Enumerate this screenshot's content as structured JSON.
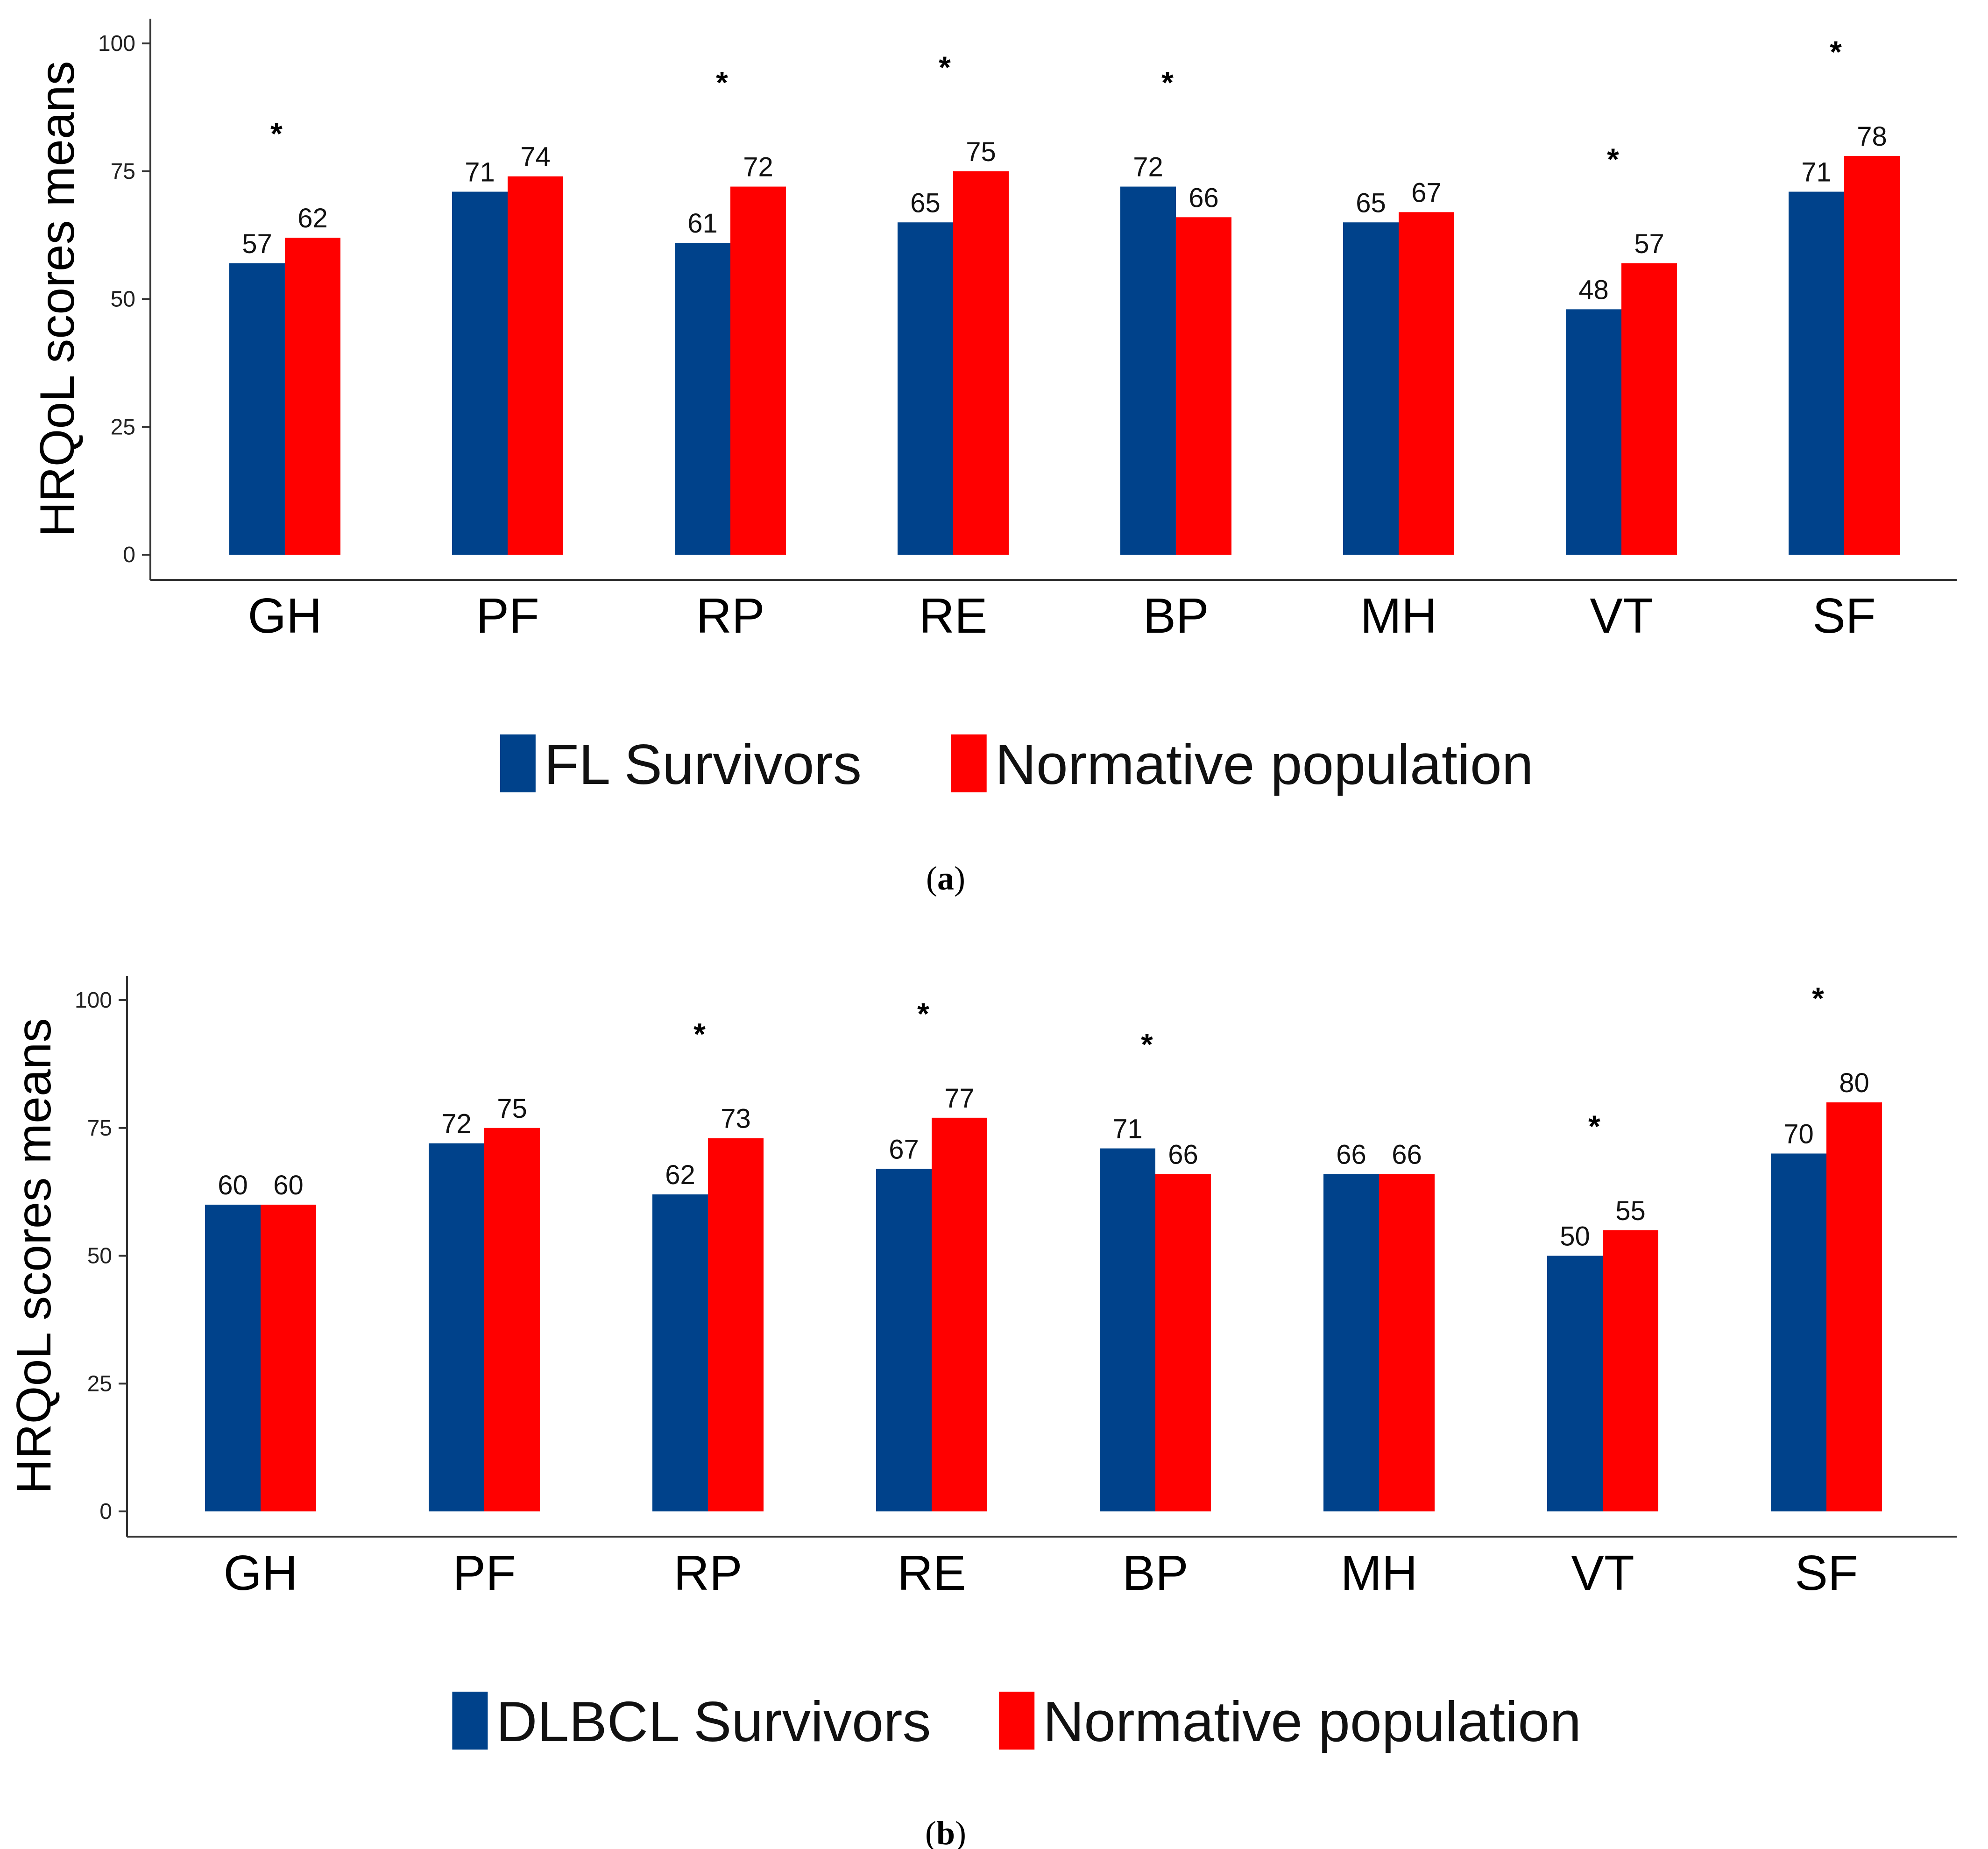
{
  "chart_data": [
    {
      "type": "bar",
      "caption_letter": "a",
      "ylabel": "HRQoL scores means",
      "ylim": [
        0,
        100
      ],
      "yticks": [
        0,
        25,
        50,
        75,
        100
      ],
      "categories": [
        "GH",
        "PF",
        "RP",
        "RE",
        "BP",
        "MH",
        "VT",
        "SF"
      ],
      "series": [
        {
          "name": "FL Survivors",
          "color": "#00428B",
          "values": [
            57,
            71,
            61,
            65,
            72,
            65,
            48,
            71
          ]
        },
        {
          "name": "Normative population",
          "color": "#FF0000",
          "values": [
            62,
            74,
            72,
            75,
            66,
            67,
            57,
            78
          ]
        }
      ],
      "significance_marker": "*",
      "significant": [
        true,
        false,
        true,
        true,
        true,
        false,
        true,
        true
      ],
      "legend_position": "bottom"
    },
    {
      "type": "bar",
      "caption_letter": "b",
      "ylabel": "HRQoL scores means",
      "ylim": [
        0,
        100
      ],
      "yticks": [
        0,
        25,
        50,
        75,
        100
      ],
      "categories": [
        "GH",
        "PF",
        "RP",
        "RE",
        "BP",
        "MH",
        "VT",
        "SF"
      ],
      "series": [
        {
          "name": "DLBCL Survivors",
          "color": "#00428B",
          "values": [
            60,
            72,
            62,
            67,
            71,
            66,
            50,
            70
          ]
        },
        {
          "name": "Normative population",
          "color": "#FF0000",
          "values": [
            60,
            75,
            73,
            77,
            66,
            66,
            55,
            80
          ]
        }
      ],
      "significance_marker": "*",
      "significant": [
        false,
        false,
        true,
        true,
        true,
        false,
        true,
        true
      ],
      "legend_position": "bottom"
    }
  ]
}
